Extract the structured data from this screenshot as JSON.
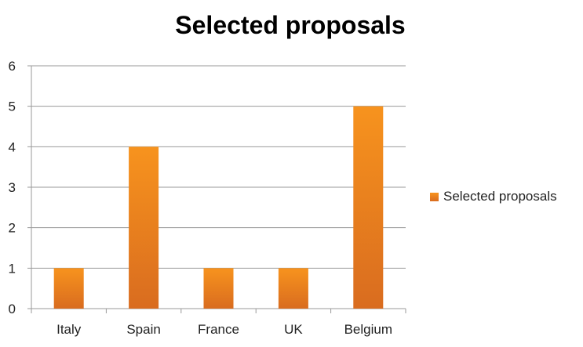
{
  "chart_data": {
    "type": "bar",
    "title": "Selected proposals",
    "categories": [
      "Italy",
      "Spain",
      "France",
      "UK",
      "Belgium"
    ],
    "series": [
      {
        "name": "Selected proposals",
        "values": [
          1,
          4,
          1,
          1,
          5
        ]
      }
    ],
    "ylim": [
      0,
      6
    ],
    "yticks": [
      0,
      1,
      2,
      3,
      4,
      5,
      6
    ],
    "grid": true,
    "legend_position": "right",
    "colors": {
      "bar_top": "#f7931e",
      "bar_bottom": "#d96c1f",
      "grid": "#9a9a9a"
    }
  }
}
